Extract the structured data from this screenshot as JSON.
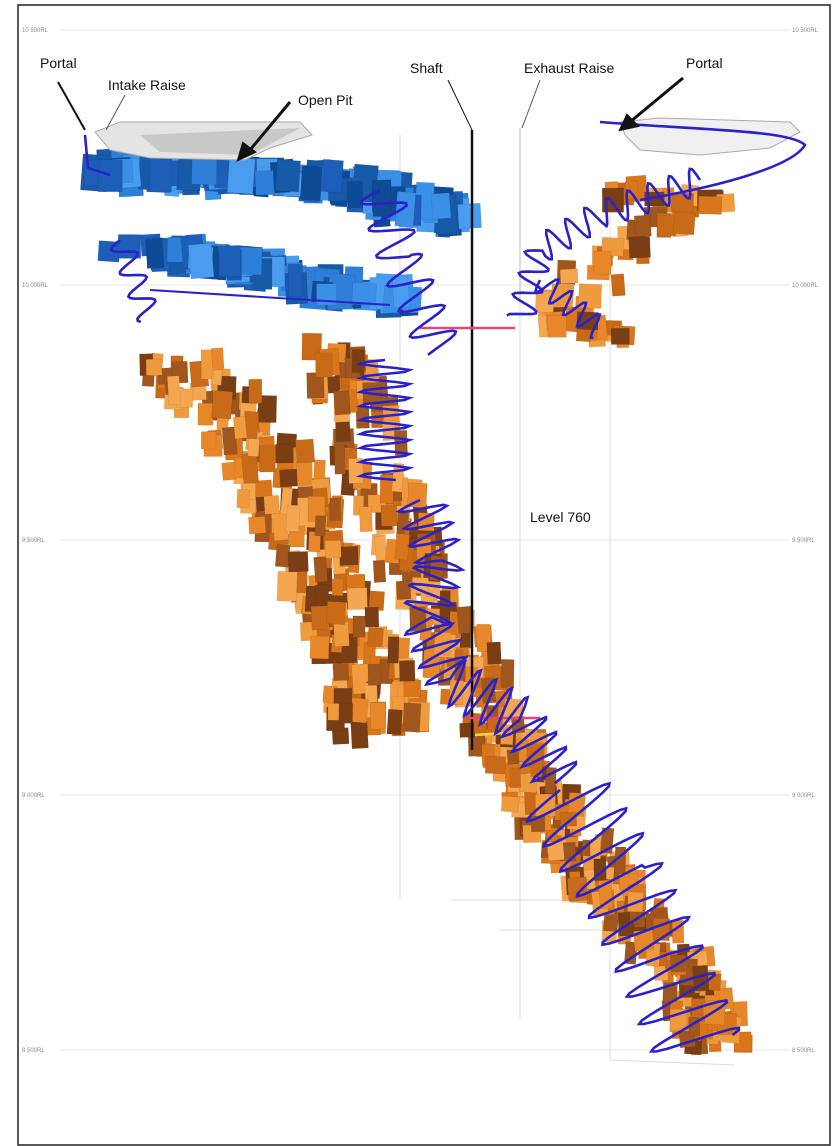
{
  "labels": {
    "portal_left": "Portal",
    "intake_raise": "Intake Raise",
    "open_pit": "Open Pit",
    "shaft": "Shaft",
    "exhaust_raise": "Exhaust Raise",
    "portal_right": "Portal",
    "level": "Level 760"
  },
  "elevations": [
    "10 500RL",
    "10 000RL",
    "9 500RL",
    "9 000RL",
    "8 500RL"
  ]
}
